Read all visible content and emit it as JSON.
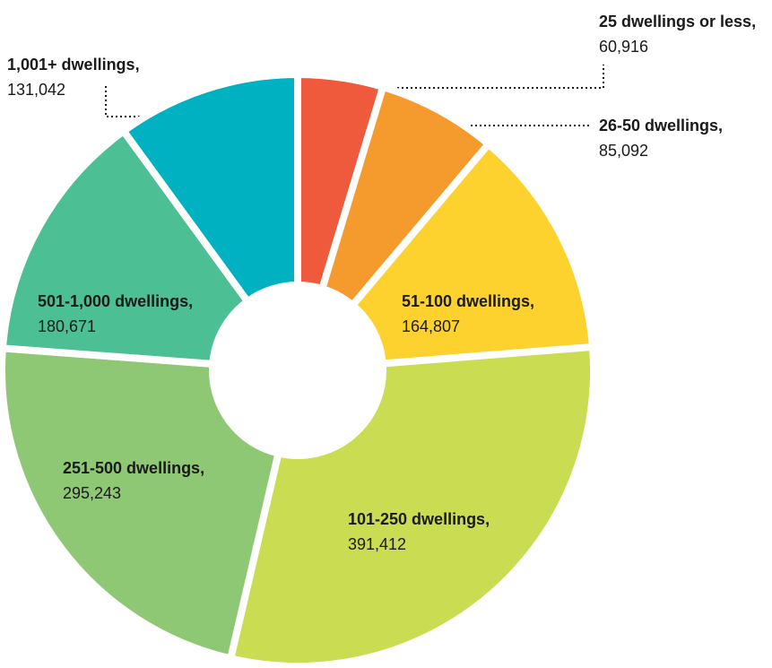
{
  "chart_data": {
    "type": "donut",
    "categories": [
      "25 dwellings or less,",
      "26-50 dwellings,",
      "51-100 dwellings,",
      "101-250 dwellings,",
      "251-500 dwellings,",
      "501-1,000 dwellings,",
      "1,001+ dwellings,"
    ],
    "values": [
      60916,
      85092,
      164807,
      391412,
      295243,
      180671,
      131042
    ],
    "value_labels": [
      "60,916",
      "85,092",
      "164,807",
      "391,412",
      "295,243",
      "180,671",
      "131,042"
    ],
    "colors": [
      "#f05a3c",
      "#f59a2c",
      "#fdd22e",
      "#c9dc52",
      "#8fc874",
      "#4dbf95",
      "#00b2c1"
    ]
  }
}
